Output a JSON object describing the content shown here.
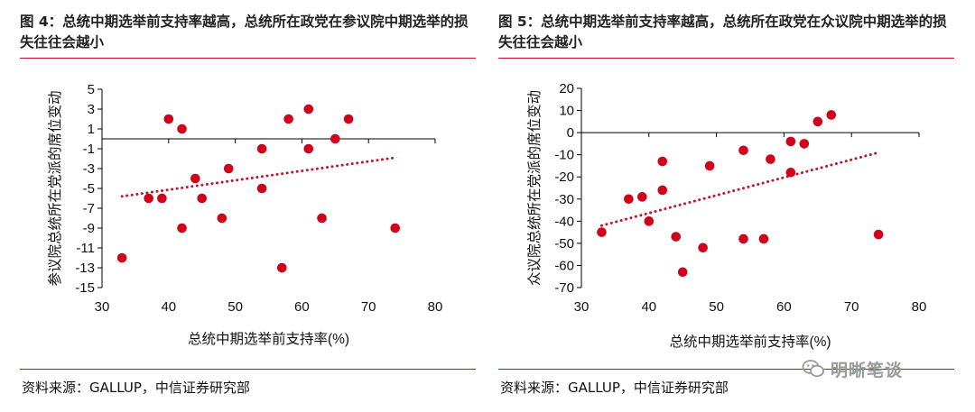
{
  "figures": [
    {
      "title": "图 4：总统中期选举前支持率越高，总统所在政党在参议院中期选举的损失往往会越小",
      "source": "资料来源：GALLUP，中信证券研究部"
    },
    {
      "title": "图 5：总统中期选举前支持率越高，总统所在政党在众议院中期选举的损失往往会越小",
      "source": "资料来源：GALLUP，中信证券研究部"
    }
  ],
  "watermark": {
    "text": "明晰笔谈",
    "icon": "wechat-icon"
  },
  "chart_data": [
    {
      "type": "scatter",
      "title": "",
      "xlabel": "总统中期选举前支持率(%)",
      "ylabel": "参议院总统所在党派的席位变动",
      "xlim": [
        30,
        80
      ],
      "ylim": [
        -15,
        5
      ],
      "x_ticks": [
        30,
        40,
        50,
        60,
        70,
        80
      ],
      "y_ticks": [
        5,
        3,
        1,
        -1,
        -3,
        -5,
        -7,
        -9,
        -11,
        -13,
        -15
      ],
      "grid": false,
      "marker_color": "#d0021b",
      "trendline": {
        "style": "dotted",
        "color": "#c0142c",
        "x": [
          33,
          74
        ],
        "y": [
          -5.8,
          -1.9
        ]
      },
      "points": [
        {
          "x": 33,
          "y": -12
        },
        {
          "x": 37,
          "y": -6
        },
        {
          "x": 39,
          "y": -6
        },
        {
          "x": 40,
          "y": 2
        },
        {
          "x": 42,
          "y": 1
        },
        {
          "x": 42,
          "y": -9
        },
        {
          "x": 44,
          "y": -4
        },
        {
          "x": 45,
          "y": -6
        },
        {
          "x": 48,
          "y": -8
        },
        {
          "x": 49,
          "y": -3
        },
        {
          "x": 54,
          "y": -1
        },
        {
          "x": 54,
          "y": -5
        },
        {
          "x": 57,
          "y": -13
        },
        {
          "x": 58,
          "y": 2
        },
        {
          "x": 61,
          "y": 3
        },
        {
          "x": 61,
          "y": -1
        },
        {
          "x": 63,
          "y": -8
        },
        {
          "x": 65,
          "y": 0
        },
        {
          "x": 67,
          "y": 2
        },
        {
          "x": 74,
          "y": -9
        }
      ]
    },
    {
      "type": "scatter",
      "title": "",
      "xlabel": "总统中期选举前支持率(%)",
      "ylabel": "众议院总统所在党派的席位变动",
      "xlim": [
        30,
        80
      ],
      "ylim": [
        -70,
        20
      ],
      "x_ticks": [
        30,
        40,
        50,
        60,
        70,
        80
      ],
      "y_ticks": [
        20,
        10,
        0,
        -10,
        -20,
        -30,
        -40,
        -50,
        -60,
        -70
      ],
      "grid": false,
      "marker_color": "#d0021b",
      "trendline": {
        "style": "dotted",
        "color": "#c0142c",
        "x": [
          33,
          74
        ],
        "y": [
          -42,
          -9
        ]
      },
      "points": [
        {
          "x": 33,
          "y": -45
        },
        {
          "x": 37,
          "y": -30
        },
        {
          "x": 39,
          "y": -29
        },
        {
          "x": 40,
          "y": -40
        },
        {
          "x": 42,
          "y": -13
        },
        {
          "x": 42,
          "y": -26
        },
        {
          "x": 44,
          "y": -47
        },
        {
          "x": 45,
          "y": -63
        },
        {
          "x": 48,
          "y": -52
        },
        {
          "x": 49,
          "y": -15
        },
        {
          "x": 54,
          "y": -8
        },
        {
          "x": 54,
          "y": -48
        },
        {
          "x": 57,
          "y": -48
        },
        {
          "x": 58,
          "y": -12
        },
        {
          "x": 61,
          "y": -4
        },
        {
          "x": 61,
          "y": -18
        },
        {
          "x": 63,
          "y": -5
        },
        {
          "x": 65,
          "y": 5
        },
        {
          "x": 67,
          "y": 8
        },
        {
          "x": 74,
          "y": -46
        }
      ]
    }
  ]
}
